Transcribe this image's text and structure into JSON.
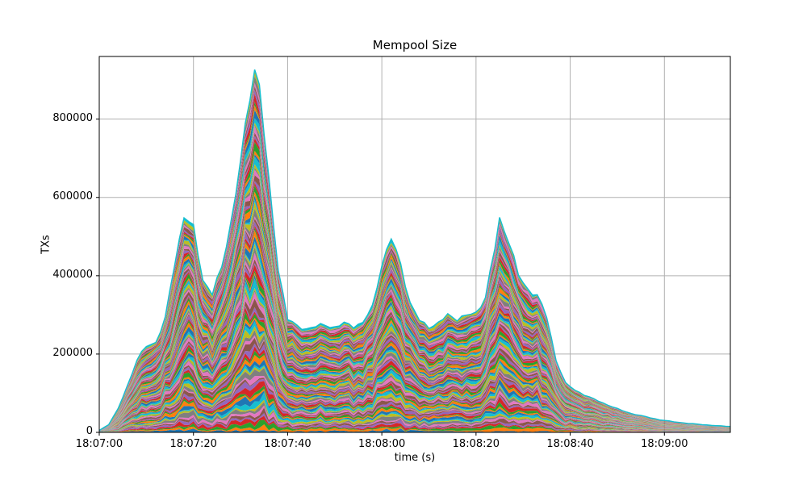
{
  "chart_data": {
    "type": "area",
    "stacked": true,
    "title": "Mempool Size",
    "xlabel": "time (s)",
    "ylabel": "TXs",
    "x_tick_labels": [
      "18:07:00",
      "18:07:20",
      "18:07:40",
      "18:08:00",
      "18:08:20",
      "18:08:40",
      "18:09:00"
    ],
    "x_tick_seconds": [
      0,
      20,
      40,
      60,
      80,
      100,
      120
    ],
    "y_tick_labels": [
      "0",
      "200000",
      "400000",
      "600000",
      "800000"
    ],
    "y_tick_values": [
      0,
      200000,
      400000,
      600000,
      800000
    ],
    "xlim_seconds": [
      0,
      134
    ],
    "ylim": [
      0,
      960000
    ],
    "grid": true,
    "legend": "none",
    "stack_total": {
      "t_seconds": [
        0,
        2,
        4,
        6,
        8,
        10,
        12,
        14,
        16,
        18,
        20,
        22,
        24,
        26,
        28,
        30,
        32,
        33,
        34,
        36,
        38,
        40,
        42,
        44,
        46,
        48,
        50,
        52,
        54,
        56,
        58,
        60,
        62,
        64,
        66,
        68,
        70,
        72,
        74,
        76,
        78,
        80,
        82,
        84,
        85,
        87,
        89,
        91,
        93,
        95,
        97,
        99,
        101,
        104,
        107,
        110,
        113,
        116,
        119,
        122,
        125,
        128,
        131,
        134
      ],
      "txs": [
        5000,
        20000,
        60000,
        120000,
        185000,
        220000,
        230000,
        290000,
        430000,
        555000,
        520000,
        390000,
        355000,
        420000,
        540000,
        690000,
        860000,
        930000,
        890000,
        640000,
        420000,
        290000,
        270000,
        265000,
        270000,
        275000,
        268000,
        278000,
        272000,
        280000,
        320000,
        430000,
        495000,
        430000,
        330000,
        285000,
        270000,
        278000,
        300000,
        290000,
        298000,
        305000,
        345000,
        470000,
        545000,
        490000,
        400000,
        365000,
        350000,
        295000,
        185000,
        125000,
        108000,
        90000,
        75000,
        60000,
        48000,
        40000,
        32000,
        27000,
        23000,
        20000,
        17000,
        15000
      ]
    },
    "palette": [
      "#1f77b4",
      "#ff7f0e",
      "#2ca02c",
      "#d62728",
      "#9467bd",
      "#8c564b",
      "#e377c2",
      "#7f7f7f",
      "#bcbd22",
      "#17becf"
    ],
    "grid_color": "#b0b0b0",
    "spine_color": "#000000",
    "top_line_color": "#17becf",
    "num_layers": 90
  }
}
